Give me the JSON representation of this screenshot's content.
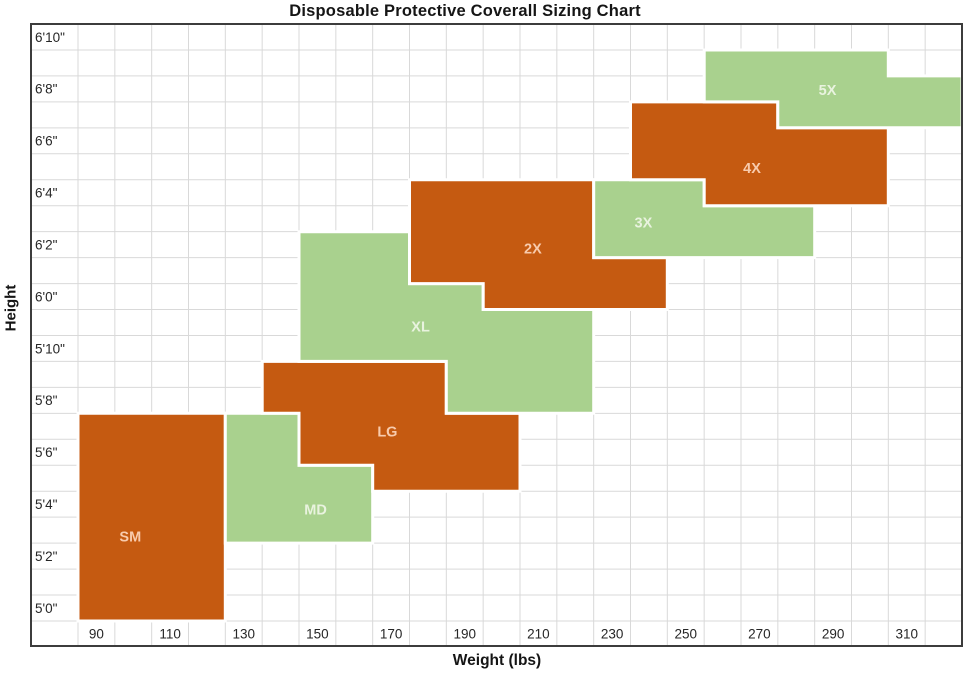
{
  "chart_data": {
    "type": "heatmap",
    "title": "Disposable Protective Coverall Sizing Chart",
    "xlabel": "Weight (lbs)",
    "ylabel": "Height",
    "x_tick_labels": [
      "90",
      "110",
      "130",
      "150",
      "170",
      "190",
      "210",
      "230",
      "250",
      "270",
      "290",
      "310"
    ],
    "y_tick_labels": [
      "6'10\"",
      "6'8\"",
      "6'6\"",
      "6'4\"",
      "6'2\"",
      "6'0\"",
      "5'10\"",
      "5'8\"",
      "5'6\"",
      "5'4\"",
      "5'2\"",
      "5'0\""
    ],
    "x_axis": {
      "unit": "lbs",
      "min": 85,
      "max": 325,
      "lbs_per_cell": 10,
      "columns": 24
    },
    "y_axis": {
      "unit": "ft-in",
      "top_row": "6'10\"",
      "bottom_row": "5'0\"",
      "inches_per_cell": 1,
      "rows": 23
    },
    "grid": true,
    "legend": "none",
    "colors": {
      "orange": "#C55A11",
      "green": "#A9D18E",
      "label_on_orange": "#F8CBAD",
      "label_on_green": "#E9F3DF",
      "gridline": "#D9D9D9",
      "border": "#3C3C3C",
      "tick_text": "#262626",
      "region_outline": "#FFFFFF"
    },
    "regions": [
      {
        "name": "SM",
        "fill": "orange",
        "weight_lbs": [
          85,
          125
        ],
        "height_range": [
          "5'0\"",
          "5'7\""
        ],
        "polygon": [
          [
            0,
            15
          ],
          [
            4,
            15
          ],
          [
            4,
            23
          ],
          [
            0,
            23
          ]
        ],
        "label_pos": [
          1.42,
          19.75
        ]
      },
      {
        "name": "MD",
        "fill": "green",
        "weight_lbs": [
          125,
          165
        ],
        "height_range": [
          "5'3\"",
          "5'7\""
        ],
        "polygon": [
          [
            4,
            15
          ],
          [
            6,
            15
          ],
          [
            6,
            17
          ],
          [
            8,
            17
          ],
          [
            8,
            20
          ],
          [
            4,
            20
          ]
        ],
        "label_pos": [
          6.45,
          18.7
        ]
      },
      {
        "name": "LG",
        "fill": "orange",
        "weight_lbs": [
          135,
          205
        ],
        "height_range": [
          "5'5\"",
          "5'9\""
        ],
        "polygon": [
          [
            5,
            13
          ],
          [
            10,
            13
          ],
          [
            10,
            15
          ],
          [
            12,
            15
          ],
          [
            12,
            18
          ],
          [
            8,
            18
          ],
          [
            8,
            17
          ],
          [
            6,
            17
          ],
          [
            6,
            15
          ],
          [
            5,
            15
          ]
        ],
        "label_pos": [
          8.4,
          15.7
        ]
      },
      {
        "name": "XL",
        "fill": "green",
        "weight_lbs": [
          145,
          225
        ],
        "height_range": [
          "5'8\"",
          "6'2\""
        ],
        "polygon": [
          [
            6,
            8
          ],
          [
            9,
            8
          ],
          [
            9,
            10
          ],
          [
            11,
            10
          ],
          [
            11,
            11
          ],
          [
            14,
            11
          ],
          [
            14,
            15
          ],
          [
            10,
            15
          ],
          [
            10,
            13
          ],
          [
            6,
            13
          ]
        ],
        "label_pos": [
          9.3,
          11.65
        ]
      },
      {
        "name": "2X",
        "fill": "orange",
        "weight_lbs": [
          175,
          245
        ],
        "height_range": [
          "6'0\"",
          "6'4\""
        ],
        "polygon": [
          [
            9,
            6
          ],
          [
            14,
            6
          ],
          [
            14,
            9
          ],
          [
            16,
            9
          ],
          [
            16,
            11
          ],
          [
            11,
            11
          ],
          [
            11,
            10
          ],
          [
            9,
            10
          ]
        ],
        "label_pos": [
          12.35,
          8.65
        ]
      },
      {
        "name": "3X",
        "fill": "green",
        "weight_lbs": [
          225,
          285
        ],
        "height_range": [
          "6'2\"",
          "6'4\""
        ],
        "polygon": [
          [
            14,
            6
          ],
          [
            17,
            6
          ],
          [
            17,
            7
          ],
          [
            20,
            7
          ],
          [
            20,
            9
          ],
          [
            14,
            9
          ]
        ],
        "label_pos": [
          15.35,
          7.65
        ]
      },
      {
        "name": "4X",
        "fill": "orange",
        "weight_lbs": [
          235,
          305
        ],
        "height_range": [
          "6'4\"",
          "6'7\""
        ],
        "polygon": [
          [
            15,
            3
          ],
          [
            19,
            3
          ],
          [
            19,
            4
          ],
          [
            22,
            4
          ],
          [
            22,
            7
          ],
          [
            17,
            7
          ],
          [
            17,
            6
          ],
          [
            15,
            6
          ]
        ],
        "label_pos": [
          18.3,
          5.55
        ]
      },
      {
        "name": "5X",
        "fill": "green",
        "weight_lbs": [
          255,
          325
        ],
        "height_range": [
          "6'7\"",
          "6'9\""
        ],
        "polygon": [
          [
            17,
            1
          ],
          [
            22,
            1
          ],
          [
            22,
            2
          ],
          [
            24,
            2
          ],
          [
            24,
            4
          ],
          [
            19,
            4
          ],
          [
            19,
            3
          ],
          [
            17,
            3
          ]
        ],
        "label_pos": [
          20.35,
          2.55
        ]
      }
    ]
  }
}
